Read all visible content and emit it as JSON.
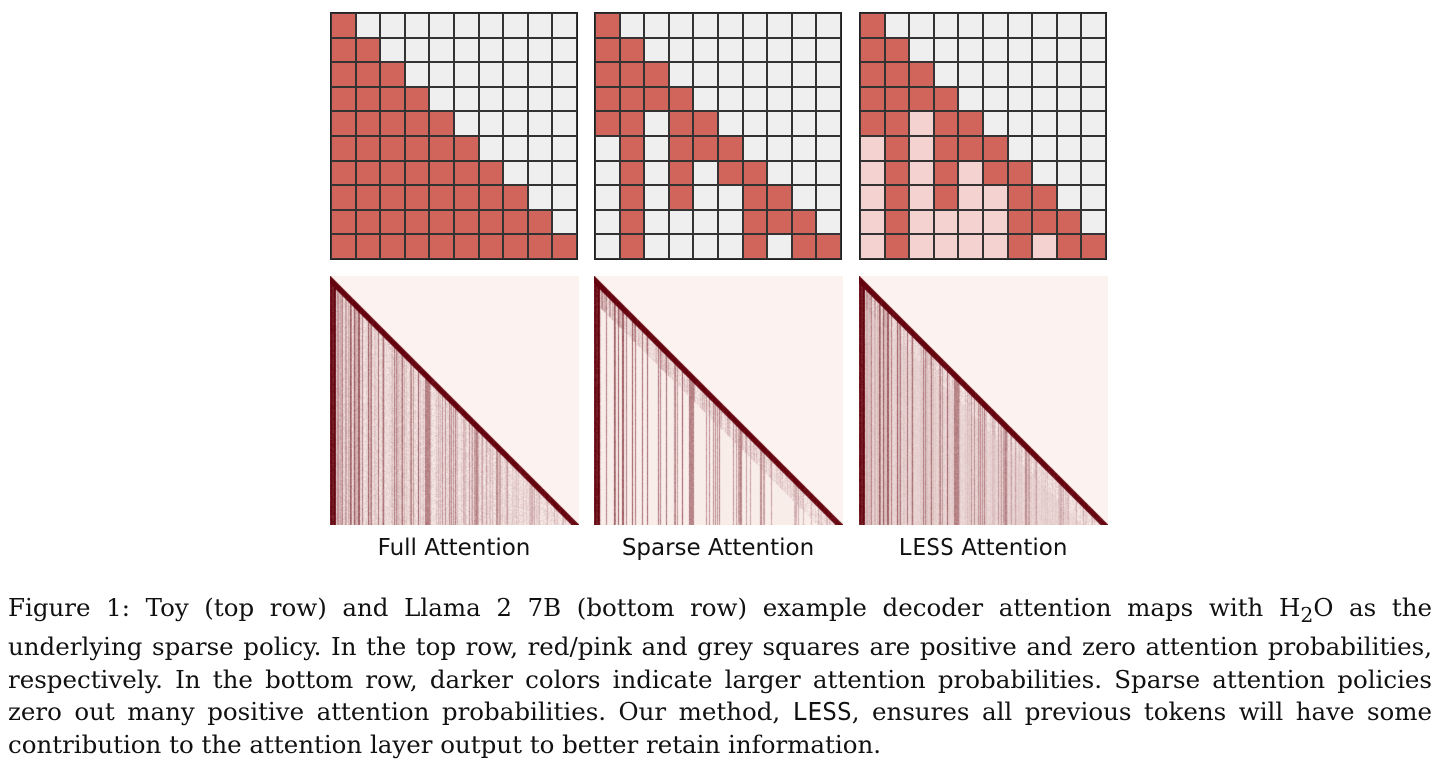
{
  "panels": [
    {
      "label": "Full Attention",
      "label_mono": "",
      "label_rest": ""
    },
    {
      "label": "Sparse Attention",
      "label_mono": "",
      "label_rest": ""
    },
    {
      "label": "",
      "label_mono": "LESS",
      "label_rest": " Attention"
    }
  ],
  "toy_sparse_mask": [
    "1",
    "11",
    "111",
    "1111",
    "11011",
    "010111",
    "0101011",
    "01010011",
    "010000111",
    "0100001011"
  ],
  "colors": {
    "red": "#d2655b",
    "pink": "#f4d2d0",
    "grey": "#efefef"
  },
  "caption": {
    "p1": "Figure 1:  Toy (top row) and Llama 2 7B (bottom row) example decoder attention maps with H",
    "sub": "2",
    "p2": "O as the underlying sparse policy.  In the top row, red/pink and grey squares are positive and zero attention probabilities, respectively. In the bottom row, darker colors indicate larger attention probabilities. Sparse attention policies zero out many positive attention probabilities.  Our method, ",
    "mono": "LESS",
    "p3": ", ensures all previous tokens will have some contribution to the attention layer output to better retain information."
  }
}
